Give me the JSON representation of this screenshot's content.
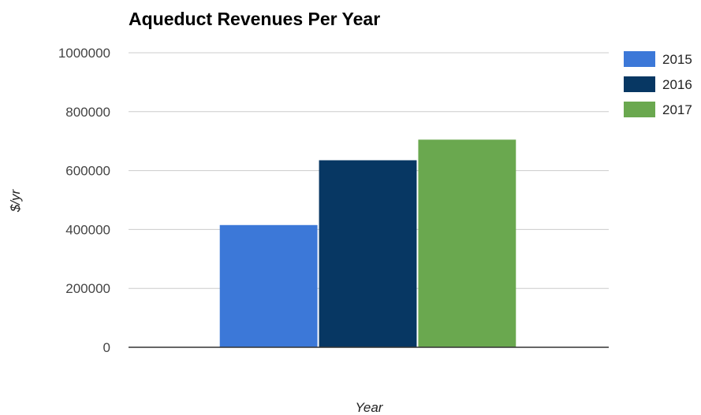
{
  "chart_data": {
    "type": "bar",
    "title": "Aqueduct Revenues Per Year",
    "xlabel": "Year",
    "ylabel": "$/yr",
    "ylim": [
      0,
      1000000
    ],
    "yticks": [
      "0",
      "200000",
      "400000",
      "600000",
      "800000",
      "1000000"
    ],
    "categories": [
      ""
    ],
    "series": [
      {
        "name": "2015",
        "values": [
          415000
        ],
        "color": "#3c78d8"
      },
      {
        "name": "2016",
        "values": [
          635000
        ],
        "color": "#073763"
      },
      {
        "name": "2017",
        "values": [
          705000
        ],
        "color": "#6aa84f"
      }
    ],
    "grid": true,
    "legend_position": "right"
  }
}
